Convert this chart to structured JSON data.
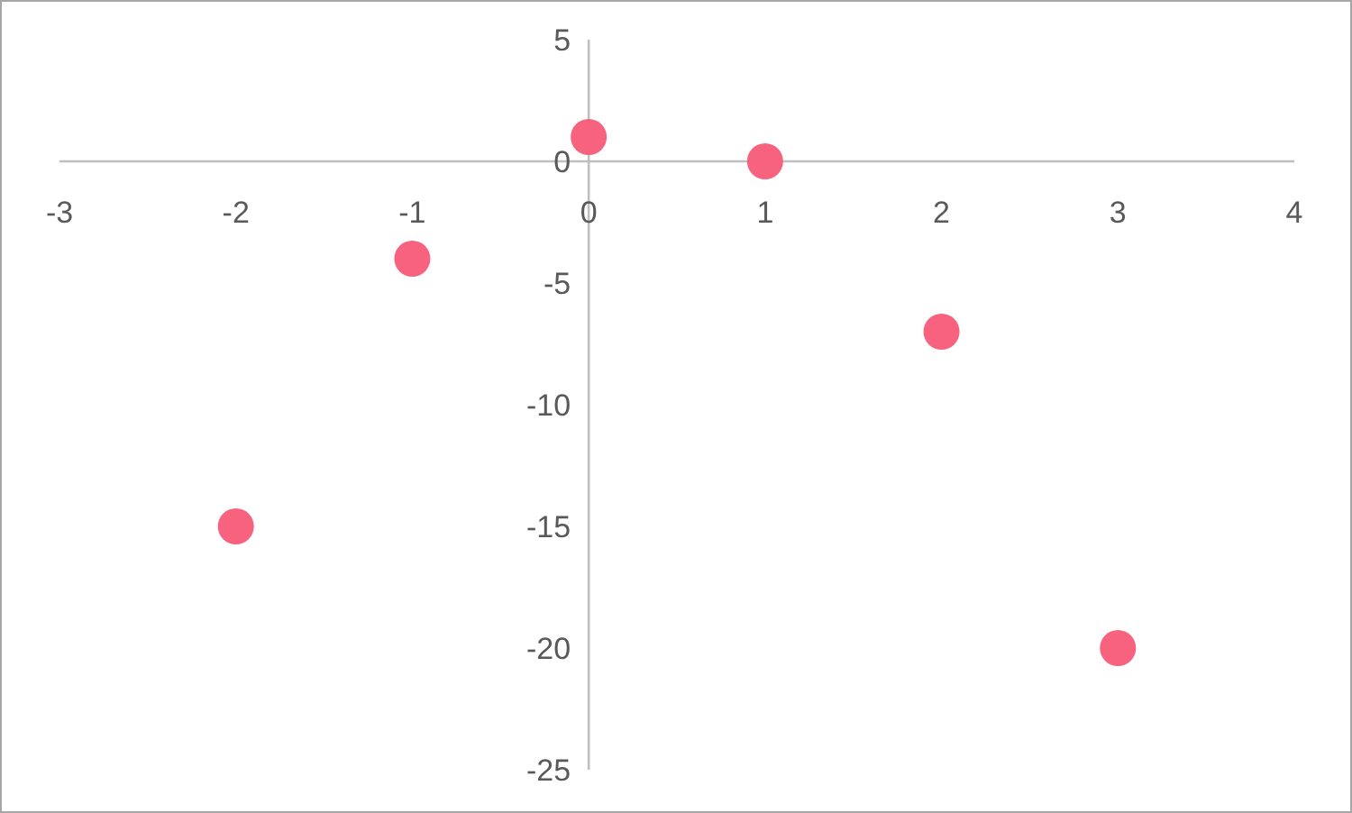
{
  "chart_data": {
    "type": "scatter",
    "x": [
      -2,
      -1,
      0,
      1,
      2,
      3
    ],
    "values": [
      -15,
      -4,
      1,
      0,
      -7,
      -20
    ],
    "color": "#f7627f",
    "marker": "circle",
    "xlim": [
      -3,
      4
    ],
    "ylim": [
      -25,
      5
    ],
    "xticks": [
      -3,
      -2,
      -1,
      0,
      1,
      2,
      3,
      4
    ],
    "yticks": [
      -25,
      -20,
      -15,
      -10,
      -5,
      0,
      5
    ]
  }
}
